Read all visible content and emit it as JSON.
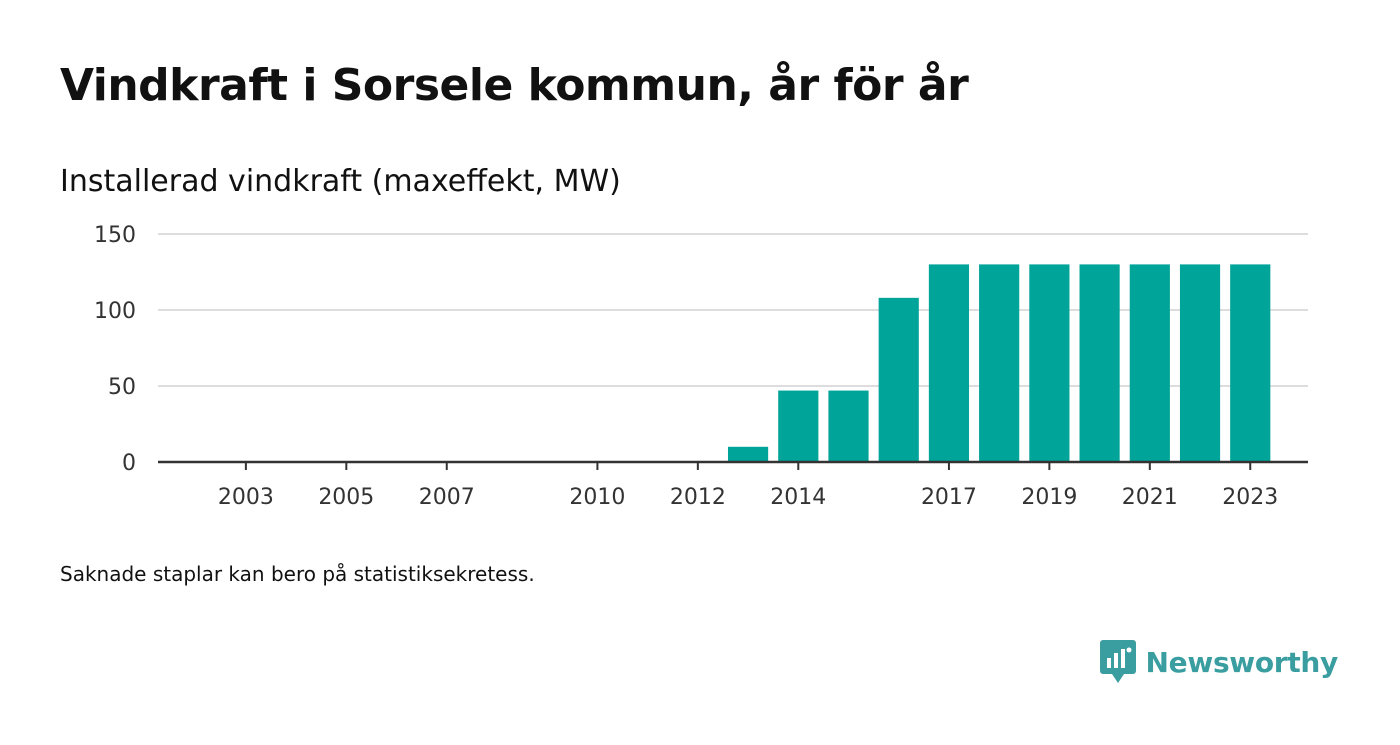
{
  "title": "Vindkraft i Sorsele kommun, år för år",
  "footnote": "Saknade staplar kan bero på statistiksekretess.",
  "brand": {
    "name": "Newsworthy",
    "icon": "newsworthy-logo-icon",
    "color": "#3a9ea0"
  },
  "chart_data": {
    "type": "bar",
    "title": "Installerad vindkraft (maxeffekt, MW)",
    "xlabel": "",
    "ylabel": "",
    "categories": [
      "2002",
      "2003",
      "2004",
      "2005",
      "2006",
      "2007",
      "2008",
      "2009",
      "2010",
      "2011",
      "2012",
      "2013",
      "2014",
      "2015",
      "2016",
      "2017",
      "2018",
      "2019",
      "2020",
      "2021",
      "2022",
      "2023"
    ],
    "values": [
      0,
      0,
      0,
      0,
      0,
      0,
      0,
      0,
      0,
      0,
      0,
      10,
      47,
      47,
      108,
      130,
      130,
      130,
      130,
      130,
      130,
      130
    ],
    "x_tick_labels": [
      "2003",
      "2005",
      "2007",
      "2010",
      "2012",
      "2014",
      "2017",
      "2019",
      "2021",
      "2023"
    ],
    "y_ticks": [
      0,
      50,
      100,
      150
    ],
    "ylim": [
      0,
      150
    ],
    "grid": true,
    "legend": "none",
    "bar_color": "#00a499",
    "grid_color": "#dddddd",
    "axis_color": "#333333"
  }
}
